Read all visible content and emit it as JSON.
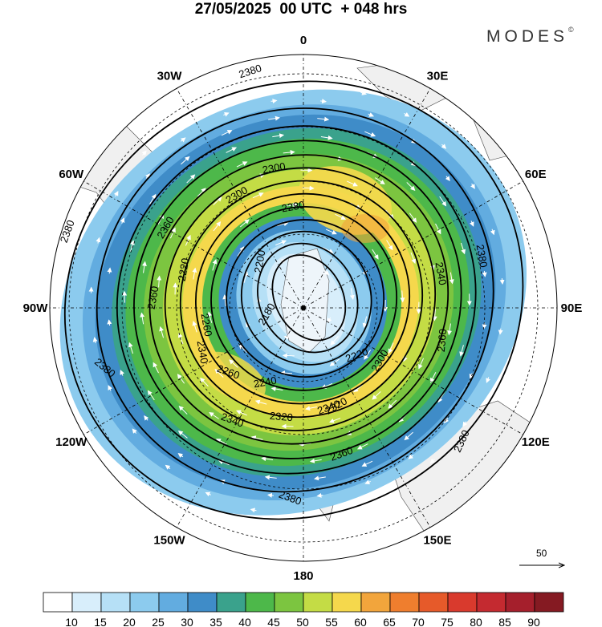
{
  "header": {
    "title": "27/05/2025  00 UTC  + 048 hrs",
    "brand": "MODES",
    "brand_mark": "©"
  },
  "map": {
    "projection": "south polar stereographic",
    "longitude_labels": [
      "0",
      "30E",
      "60E",
      "90E",
      "120E",
      "150E",
      "180",
      "150W",
      "120W",
      "90W",
      "60W",
      "30W"
    ],
    "height_contours": [
      "2380",
      "2380",
      "2380",
      "2380",
      "2380",
      "2380",
      "2360",
      "2360",
      "2360",
      "2360",
      "2340",
      "2340",
      "2340",
      "2340",
      "2320",
      "2320",
      "2300",
      "2300",
      "2300",
      "2280",
      "2260",
      "2260",
      "2240",
      "2220",
      "2220",
      "2200",
      "2180"
    ],
    "reference_vector": "50",
    "colors": {
      "land": "#f0f0f0",
      "ocean": "#ffffff",
      "grid": "#000000"
    }
  },
  "colorbar": {
    "ticks": [
      "10",
      "15",
      "20",
      "25",
      "30",
      "35",
      "40",
      "45",
      "50",
      "55",
      "60",
      "65",
      "70",
      "75",
      "80",
      "85",
      "90"
    ],
    "colors": [
      "#ffffff",
      "#d8eefb",
      "#b6e0f6",
      "#8ccbee",
      "#62ace0",
      "#3f8cc8",
      "#3aa28c",
      "#4db84a",
      "#7cc540",
      "#c4dc45",
      "#f5d84c",
      "#f2a53c",
      "#ef7e2e",
      "#e65a2a",
      "#d93a2d",
      "#c42a30",
      "#a51f2c",
      "#851a22"
    ]
  }
}
